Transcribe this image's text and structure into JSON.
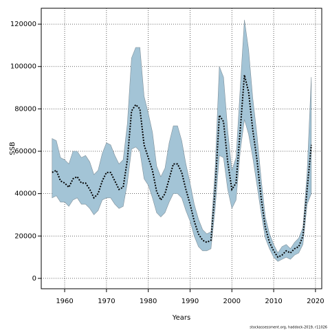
{
  "chart_data": {
    "type": "line",
    "xlabel": "Years",
    "ylabel": "SSB",
    "note": "stockassessment.org, haddock-2019, r11026",
    "x": [
      1957,
      1958,
      1959,
      1960,
      1961,
      1962,
      1963,
      1964,
      1965,
      1966,
      1967,
      1968,
      1969,
      1970,
      1971,
      1972,
      1973,
      1974,
      1975,
      1976,
      1977,
      1978,
      1979,
      1980,
      1981,
      1982,
      1983,
      1984,
      1985,
      1986,
      1987,
      1988,
      1989,
      1990,
      1991,
      1992,
      1993,
      1994,
      1995,
      1996,
      1997,
      1998,
      1999,
      2000,
      2001,
      2002,
      2003,
      2004,
      2005,
      2006,
      2007,
      2008,
      2009,
      2010,
      2011,
      2012,
      2013,
      2014,
      2015,
      2016,
      2017,
      2018,
      2019
    ],
    "values": [
      50000,
      51000,
      46000,
      45000,
      43000,
      47000,
      48000,
      45000,
      45000,
      42000,
      38000,
      40000,
      46000,
      50000,
      50000,
      46000,
      42000,
      43000,
      56000,
      79000,
      82000,
      80000,
      63000,
      57000,
      51000,
      41000,
      37000,
      40000,
      47000,
      54000,
      54000,
      50000,
      42000,
      35000,
      27000,
      21000,
      18000,
      17000,
      18000,
      42000,
      77000,
      74000,
      55000,
      42000,
      45000,
      70000,
      96000,
      88000,
      70000,
      56000,
      38000,
      24000,
      17000,
      13000,
      10000,
      11000,
      13000,
      12000,
      14000,
      15000,
      20000,
      42000,
      63000
    ],
    "lower": [
      38000,
      39000,
      36000,
      36000,
      34000,
      37000,
      38000,
      35000,
      35000,
      33000,
      30000,
      32000,
      37000,
      38000,
      38000,
      35000,
      33000,
      34000,
      45000,
      61000,
      62000,
      60000,
      47000,
      44000,
      38000,
      31000,
      29000,
      31000,
      36000,
      40000,
      40000,
      38000,
      32000,
      27000,
      20000,
      15000,
      13000,
      13000,
      14000,
      33000,
      58000,
      57000,
      42000,
      33000,
      37000,
      60000,
      75000,
      68000,
      57000,
      44000,
      31000,
      19000,
      14000,
      10000,
      8000,
      9000,
      10000,
      9000,
      11000,
      12000,
      16000,
      35000,
      40000
    ],
    "upper": [
      66000,
      65000,
      57000,
      56000,
      54000,
      60000,
      60000,
      57000,
      58000,
      55000,
      49000,
      51000,
      59000,
      64000,
      63000,
      58000,
      54000,
      56000,
      73000,
      104000,
      109000,
      109000,
      86000,
      78000,
      69000,
      53000,
      48000,
      52000,
      64000,
      72000,
      72000,
      65000,
      54000,
      45000,
      35000,
      28000,
      23000,
      21000,
      22000,
      52000,
      100000,
      95000,
      70000,
      51000,
      57000,
      90000,
      122000,
      108000,
      85000,
      68000,
      47000,
      29000,
      21000,
      16000,
      12000,
      15000,
      16000,
      14000,
      17000,
      19000,
      24000,
      50000,
      95000
    ],
    "color": "#000000",
    "band_color": "#a3c4d6",
    "xlim": [
      1954.4,
      2021.5
    ],
    "ylim": [
      -4900,
      127500
    ],
    "xticks": [
      1960,
      1970,
      1980,
      1990,
      2000,
      2010,
      2020
    ],
    "yticks": [
      0,
      20000,
      40000,
      60000,
      80000,
      100000,
      120000
    ],
    "grid": true
  }
}
